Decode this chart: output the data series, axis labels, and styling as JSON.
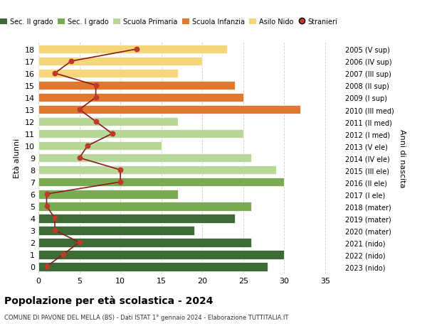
{
  "ages": [
    18,
    17,
    16,
    15,
    14,
    13,
    12,
    11,
    10,
    9,
    8,
    7,
    6,
    5,
    4,
    3,
    2,
    1,
    0
  ],
  "right_labels": [
    "2005 (V sup)",
    "2006 (IV sup)",
    "2007 (III sup)",
    "2008 (II sup)",
    "2009 (I sup)",
    "2010 (III med)",
    "2011 (II med)",
    "2012 (I med)",
    "2013 (V ele)",
    "2014 (IV ele)",
    "2015 (III ele)",
    "2016 (II ele)",
    "2017 (I ele)",
    "2018 (mater)",
    "2019 (mater)",
    "2020 (mater)",
    "2021 (nido)",
    "2022 (nido)",
    "2023 (nido)"
  ],
  "bar_values": [
    28,
    30,
    26,
    19,
    24,
    26,
    17,
    30,
    29,
    26,
    15,
    25,
    17,
    32,
    25,
    24,
    17,
    20,
    23
  ],
  "bar_colors": [
    "#3d6b35",
    "#3d6b35",
    "#3d6b35",
    "#3d6b35",
    "#3d6b35",
    "#7aab52",
    "#7aab52",
    "#7aab52",
    "#b8d89a",
    "#b8d89a",
    "#b8d89a",
    "#b8d89a",
    "#b8d89a",
    "#e07830",
    "#e07830",
    "#e07830",
    "#f5d67a",
    "#f5d67a",
    "#f5d67a"
  ],
  "stranieri_values": [
    1,
    3,
    5,
    2,
    2,
    1,
    1,
    10,
    10,
    5,
    6,
    9,
    7,
    5,
    7,
    7,
    2,
    4,
    12
  ],
  "legend_labels": [
    "Sec. II grado",
    "Sec. I grado",
    "Scuola Primaria",
    "Scuola Infanzia",
    "Asilo Nido",
    "Stranieri"
  ],
  "legend_colors": [
    "#3d6b35",
    "#7aab52",
    "#b8d89a",
    "#e07830",
    "#f5d67a",
    "#c0392b"
  ],
  "title": "Popolazione per età scolastica - 2024",
  "subtitle": "COMUNE DI PAVONE DEL MELLA (BS) - Dati ISTAT 1° gennaio 2024 - Elaborazione TUTTITALIA.IT",
  "ylabel_left": "Età alunni",
  "ylabel_right": "Anni di nascita",
  "xlim": [
    0,
    37
  ],
  "bar_height": 0.75,
  "background_color": "#ffffff",
  "grid_color": "#cccccc",
  "stranieri_color": "#c0392b",
  "stranieri_line_color": "#8b1a1a"
}
